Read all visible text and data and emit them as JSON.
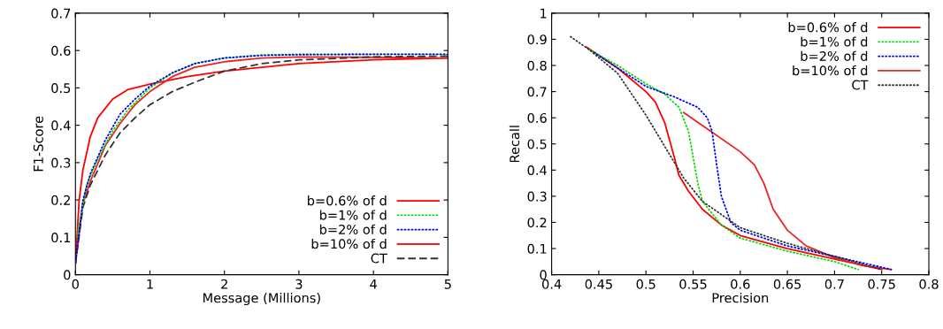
{
  "chart_data": [
    {
      "type": "line",
      "xlabel": "Message (Millions)",
      "ylabel": "F1-Score",
      "xlim": [
        0,
        5
      ],
      "ylim": [
        0,
        0.7
      ],
      "xticks": [
        0,
        1,
        2,
        3,
        4,
        5
      ],
      "yticks": [
        0,
        0.1,
        0.2,
        0.3,
        0.4,
        0.5,
        0.6,
        0.7
      ],
      "grid": false,
      "legend": "bottom right",
      "series": [
        {
          "name": "b=0.6% of d",
          "color": "#ff0000",
          "line_style": "solid",
          "x": [
            0,
            0.05,
            0.1,
            0.2,
            0.3,
            0.5,
            0.7,
            1,
            1.5,
            2,
            3,
            4,
            5
          ],
          "values": [
            0.03,
            0.2,
            0.28,
            0.37,
            0.42,
            0.47,
            0.495,
            0.51,
            0.53,
            0.545,
            0.565,
            0.575,
            0.58
          ]
        },
        {
          "name": "b=1% of d",
          "color": "#00dd00",
          "line_style": "dotted",
          "x": [
            0.02,
            0.15,
            0.3,
            0.5,
            0.7,
            0.8,
            1,
            1.3,
            1.6,
            2,
            2.5,
            3,
            4,
            5
          ],
          "values": [
            0.1,
            0.24,
            0.31,
            0.385,
            0.44,
            0.46,
            0.5,
            0.54,
            0.565,
            0.58,
            0.588,
            0.59,
            0.59,
            0.59
          ]
        },
        {
          "name": "b=2% of d",
          "color": "#0000ff",
          "line_style": "dotted",
          "x": [
            0,
            0.1,
            0.2,
            0.4,
            0.6,
            0.8,
            1,
            1.3,
            1.6,
            2,
            2.5,
            3,
            4,
            5
          ],
          "values": [
            0.03,
            0.2,
            0.27,
            0.36,
            0.43,
            0.47,
            0.505,
            0.54,
            0.565,
            0.58,
            0.587,
            0.589,
            0.59,
            0.59
          ]
        },
        {
          "name": "b=10% of d",
          "color": "#ee2222",
          "line_style": "solid",
          "x": [
            0,
            0.1,
            0.2,
            0.4,
            0.6,
            0.8,
            1,
            1.3,
            1.6,
            2,
            2.5,
            3,
            4,
            5
          ],
          "values": [
            0.03,
            0.19,
            0.25,
            0.345,
            0.405,
            0.455,
            0.49,
            0.53,
            0.555,
            0.57,
            0.58,
            0.583,
            0.582,
            0.58
          ]
        },
        {
          "name": "CT",
          "color": "#333333",
          "line_style": "dashed",
          "x": [
            0,
            0.1,
            0.2,
            0.4,
            0.6,
            0.8,
            1,
            1.3,
            1.6,
            2,
            2.5,
            3,
            4,
            5
          ],
          "values": [
            0.03,
            0.18,
            0.24,
            0.32,
            0.38,
            0.42,
            0.455,
            0.49,
            0.515,
            0.545,
            0.565,
            0.575,
            0.583,
            0.585
          ]
        }
      ]
    },
    {
      "type": "line",
      "xlabel": "Precision",
      "ylabel": "Recall",
      "xlim": [
        0.4,
        0.8
      ],
      "ylim": [
        0,
        1
      ],
      "xticks": [
        0.4,
        0.45,
        0.5,
        0.55,
        0.6,
        0.65,
        0.7,
        0.75,
        0.8
      ],
      "yticks": [
        0,
        0.1,
        0.2,
        0.3,
        0.4,
        0.5,
        0.6,
        0.7,
        0.8,
        0.9,
        1
      ],
      "grid": false,
      "legend": "top right",
      "series": [
        {
          "name": "b=0.6% of d",
          "color": "#ff0000",
          "line_style": "solid",
          "x": [
            0.437,
            0.47,
            0.5,
            0.51,
            0.52,
            0.53,
            0.535,
            0.545,
            0.56,
            0.58,
            0.6,
            0.65,
            0.7,
            0.75
          ],
          "values": [
            0.87,
            0.79,
            0.7,
            0.66,
            0.58,
            0.45,
            0.38,
            0.32,
            0.25,
            0.19,
            0.15,
            0.1,
            0.06,
            0.02
          ]
        },
        {
          "name": "b=1% of d",
          "color": "#00dd00",
          "line_style": "dotted",
          "x": [
            0.44,
            0.47,
            0.5,
            0.52,
            0.535,
            0.545,
            0.55,
            0.555,
            0.56,
            0.58,
            0.6,
            0.65,
            0.7,
            0.725
          ],
          "values": [
            0.86,
            0.8,
            0.73,
            0.69,
            0.64,
            0.55,
            0.45,
            0.35,
            0.28,
            0.19,
            0.14,
            0.09,
            0.05,
            0.02
          ]
        },
        {
          "name": "b=2% of d",
          "color": "#0000ff",
          "line_style": "dotted",
          "x": [
            0.445,
            0.47,
            0.5,
            0.53,
            0.555,
            0.565,
            0.57,
            0.575,
            0.58,
            0.59,
            0.6,
            0.65,
            0.7,
            0.76
          ],
          "values": [
            0.85,
            0.79,
            0.72,
            0.68,
            0.64,
            0.6,
            0.55,
            0.42,
            0.3,
            0.2,
            0.17,
            0.11,
            0.07,
            0.02
          ]
        },
        {
          "name": "b=10% of d",
          "color": "#ee2222",
          "line_style": "solid",
          "x": [
            0.54,
            0.56,
            0.6,
            0.615,
            0.625,
            0.635,
            0.65,
            0.67,
            0.7,
            0.73,
            0.76
          ],
          "values": [
            0.62,
            0.57,
            0.47,
            0.42,
            0.35,
            0.25,
            0.17,
            0.11,
            0.065,
            0.035,
            0.02
          ]
        },
        {
          "name": "CT",
          "color": "#333333",
          "line_style": "dotted",
          "x": [
            0.42,
            0.44,
            0.47,
            0.5,
            0.52,
            0.54,
            0.56,
            0.6,
            0.65,
            0.7,
            0.75
          ],
          "values": [
            0.91,
            0.86,
            0.77,
            0.61,
            0.49,
            0.37,
            0.28,
            0.18,
            0.12,
            0.07,
            0.02
          ]
        }
      ]
    }
  ]
}
